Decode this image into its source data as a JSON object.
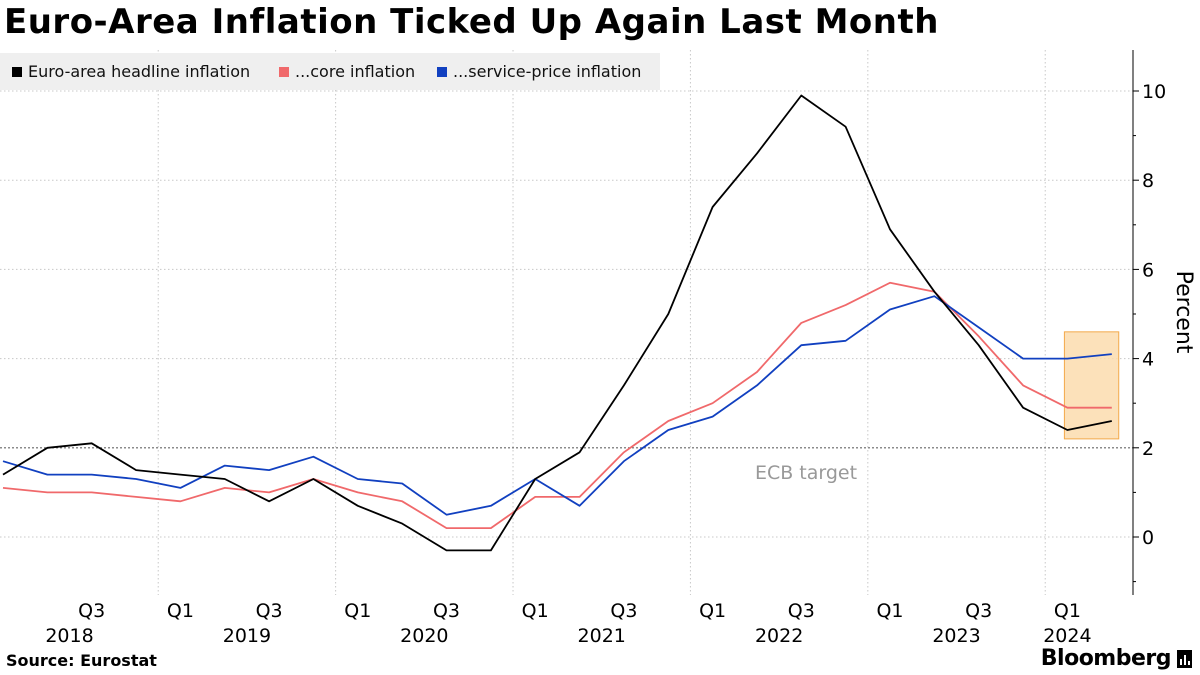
{
  "title": "Euro-Area Inflation Ticked Up Again Last Month",
  "legend": [
    {
      "label": "Euro-area headline inflation",
      "color": "#000000"
    },
    {
      "label": "...core inflation",
      "color": "#f0696b"
    },
    {
      "label": "...service-price inflation",
      "color": "#1140c0"
    }
  ],
  "source": "Source:  Eurostat",
  "brand": "Bloomberg",
  "chart_data": {
    "type": "line",
    "ylabel": "Percent",
    "ylim": [
      -1.3,
      11
    ],
    "yticks": [
      0,
      2,
      4,
      6,
      8,
      10
    ],
    "grid": true,
    "legend_position": "top-left",
    "annotation": "ECB target",
    "reference_line": 2,
    "highlight_region": {
      "x_from": "2024-Q1",
      "x_to": "2024-Q2",
      "y_from": 2.2,
      "y_to": 4.6
    },
    "quarter_labels": [
      {
        "x": "2018-Q3",
        "label": "Q3"
      },
      {
        "x": "2019-Q1",
        "label": "Q1"
      },
      {
        "x": "2019-Q3",
        "label": "Q3"
      },
      {
        "x": "2020-Q1",
        "label": "Q1"
      },
      {
        "x": "2020-Q3",
        "label": "Q3"
      },
      {
        "x": "2021-Q1",
        "label": "Q1"
      },
      {
        "x": "2021-Q3",
        "label": "Q3"
      },
      {
        "x": "2022-Q1",
        "label": "Q1"
      },
      {
        "x": "2022-Q3",
        "label": "Q3"
      },
      {
        "x": "2023-Q1",
        "label": "Q1"
      },
      {
        "x": "2023-Q3",
        "label": "Q3"
      },
      {
        "x": "2024-Q1",
        "label": "Q1"
      }
    ],
    "year_labels": [
      "2018",
      "2019",
      "2020",
      "2021",
      "2022",
      "2023",
      "2024"
    ],
    "x": [
      "2018-Q1",
      "2018-Q2",
      "2018-Q3",
      "2018-Q4",
      "2019-Q1",
      "2019-Q2",
      "2019-Q3",
      "2019-Q4",
      "2020-Q1",
      "2020-Q2",
      "2020-Q3",
      "2020-Q4",
      "2021-Q1",
      "2021-Q2",
      "2021-Q3",
      "2021-Q4",
      "2022-Q1",
      "2022-Q2",
      "2022-Q3",
      "2022-Q4",
      "2023-Q1",
      "2023-Q2",
      "2023-Q3",
      "2023-Q4",
      "2024-Q1",
      "2024-Q2"
    ],
    "series": [
      {
        "name": "Euro-area headline inflation",
        "color": "#000000",
        "values": [
          1.4,
          2.0,
          2.1,
          1.5,
          1.4,
          1.3,
          0.8,
          1.3,
          0.7,
          0.3,
          -0.3,
          -0.3,
          1.3,
          1.9,
          3.4,
          5.0,
          7.4,
          8.6,
          9.9,
          9.2,
          6.9,
          5.5,
          4.3,
          2.9,
          2.4,
          2.6
        ]
      },
      {
        "name": "...core inflation",
        "color": "#f0696b",
        "values": [
          1.1,
          1.0,
          1.0,
          0.9,
          0.8,
          1.1,
          1.0,
          1.3,
          1.0,
          0.8,
          0.2,
          0.2,
          0.9,
          0.9,
          1.9,
          2.6,
          3.0,
          3.7,
          4.8,
          5.2,
          5.7,
          5.5,
          4.5,
          3.4,
          2.9,
          2.9
        ]
      },
      {
        "name": "...service-price inflation",
        "color": "#1140c0",
        "values": [
          1.7,
          1.4,
          1.4,
          1.3,
          1.1,
          1.6,
          1.5,
          1.8,
          1.3,
          1.2,
          0.5,
          0.7,
          1.3,
          0.7,
          1.7,
          2.4,
          2.7,
          3.4,
          4.3,
          4.4,
          5.1,
          5.4,
          4.7,
          4.0,
          4.0,
          4.1
        ]
      }
    ]
  }
}
